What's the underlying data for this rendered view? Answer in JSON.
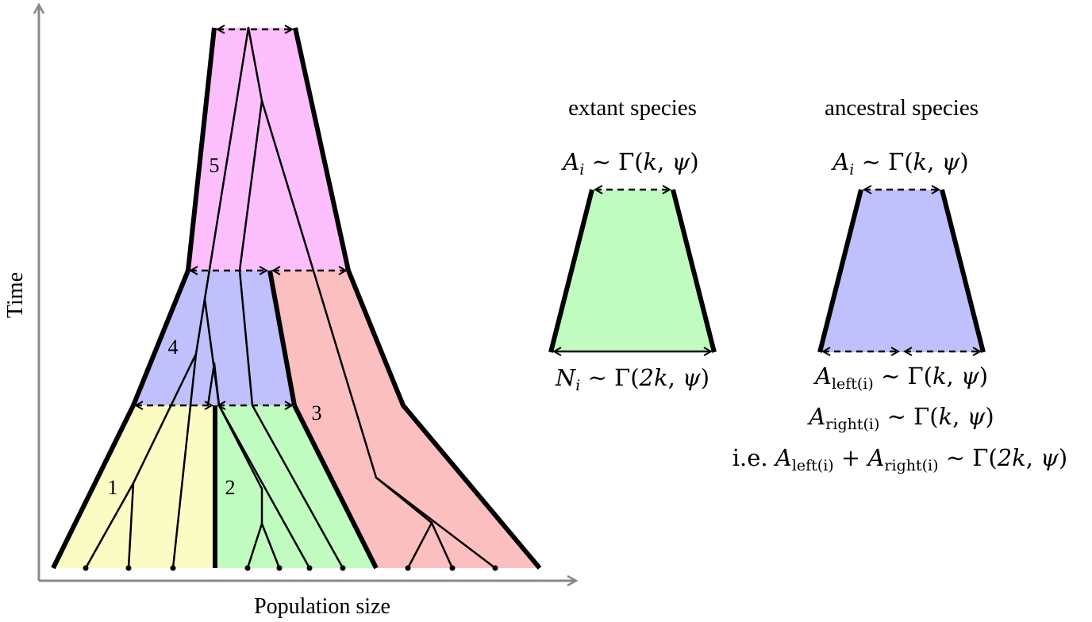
{
  "axes": {
    "x_label": "Population size",
    "y_label": "Time"
  },
  "populations": [
    {
      "id": "1",
      "color": "#fbfcc3"
    },
    {
      "id": "2",
      "color": "#c0fcc0"
    },
    {
      "id": "3",
      "color": "#fcbfc0"
    },
    {
      "id": "4",
      "color": "#c0c0fc"
    },
    {
      "id": "5",
      "color": "#fcbffc"
    }
  ],
  "legend": {
    "extant": {
      "heading": "extant species",
      "top_formula": "A_i ~ Γ(k, ψ)",
      "bottom_formula": "N_i ~ Γ(2k, ψ)",
      "color": "#c0fcc0"
    },
    "ancestral": {
      "heading": "ancestral species",
      "top_formula": "A_i ~ Γ(k, ψ)",
      "formula_left": "A_left(i) ~ Γ(k, ψ)",
      "formula_right": "A_right(i) ~ Γ(k, ψ)",
      "formula_sum": "i.e. A_left(i) + A_right(i) ~ Γ(2k, ψ)",
      "color": "#c0c0fc"
    }
  },
  "text": {
    "A": "A",
    "N": "N",
    "i": "i",
    "sim": " ∼ Γ(",
    "k": "k",
    "two_k": "2k",
    "psi": "ψ",
    "comma": ", ",
    "close": ")",
    "left_i": "left(i)",
    "right_i": "right(i)",
    "ie": "i.e. ",
    "plus": " + "
  }
}
